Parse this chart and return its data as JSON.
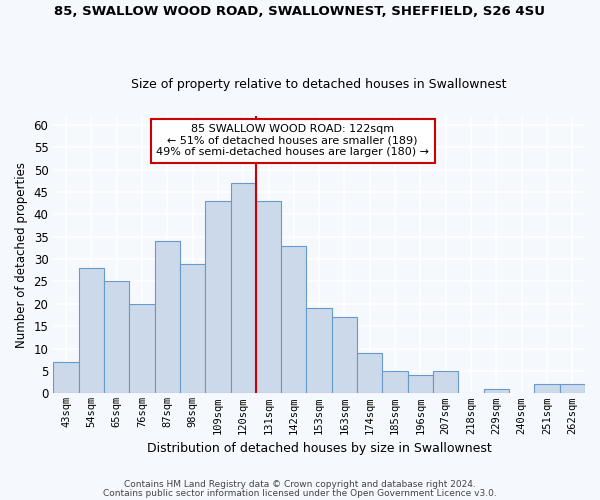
{
  "title1": "85, SWALLOW WOOD ROAD, SWALLOWNEST, SHEFFIELD, S26 4SU",
  "title2": "Size of property relative to detached houses in Swallownest",
  "xlabel": "Distribution of detached houses by size in Swallownest",
  "ylabel": "Number of detached properties",
  "categories": [
    "43sqm",
    "54sqm",
    "65sqm",
    "76sqm",
    "87sqm",
    "98sqm",
    "109sqm",
    "120sqm",
    "131sqm",
    "142sqm",
    "153sqm",
    "163sqm",
    "174sqm",
    "185sqm",
    "196sqm",
    "207sqm",
    "218sqm",
    "229sqm",
    "240sqm",
    "251sqm",
    "262sqm"
  ],
  "values": [
    7,
    28,
    25,
    20,
    34,
    29,
    43,
    47,
    43,
    33,
    19,
    17,
    9,
    5,
    4,
    5,
    0,
    1,
    0,
    2,
    2
  ],
  "bar_color": "#ccd9ea",
  "bar_edge_color": "#6699cc",
  "vline_color": "#cc0000",
  "vline_index": 7.5,
  "annotation_line1": "85 SWALLOW WOOD ROAD: 122sqm",
  "annotation_line2": "← 51% of detached houses are smaller (189)",
  "annotation_line3": "49% of semi-detached houses are larger (180) →",
  "annotation_box_color": "#ffffff",
  "annotation_box_edge": "#cc0000",
  "ylim": [
    0,
    62
  ],
  "yticks": [
    0,
    5,
    10,
    15,
    20,
    25,
    30,
    35,
    40,
    45,
    50,
    55,
    60
  ],
  "footer1": "Contains HM Land Registry data © Crown copyright and database right 2024.",
  "footer2": "Contains public sector information licensed under the Open Government Licence v3.0.",
  "bg_color": "#f5f8fc",
  "plot_bg_color": "#f5f8fc",
  "grid_color": "#ffffff"
}
